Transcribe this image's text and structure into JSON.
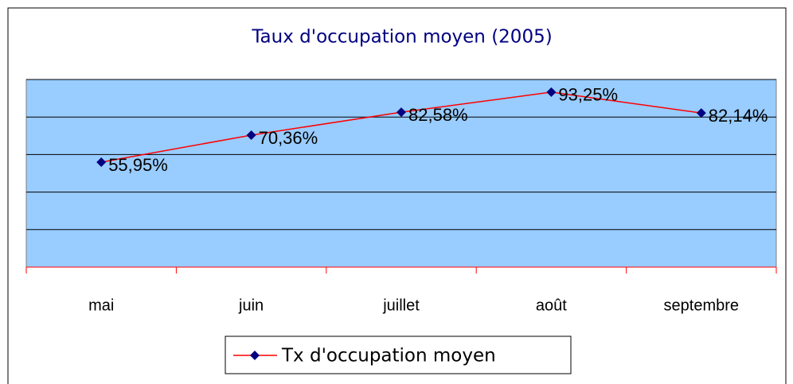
{
  "chart_data": {
    "type": "line",
    "title": "Taux d'occupation moyen (2005)",
    "categories": [
      "mai",
      "juin",
      "juillet",
      "août",
      "septembre"
    ],
    "series": [
      {
        "name": "Tx d'occupation moyen",
        "color": "#ff0000",
        "marker_color": "#000080",
        "values": [
          55.95,
          70.36,
          82.58,
          93.25,
          82.14
        ],
        "value_labels": [
          "55,95%",
          "70,36%",
          "82,58%",
          "93,25%",
          "82,14%"
        ]
      }
    ],
    "ylim": [
      0,
      100
    ],
    "yticks": [
      0,
      20,
      40,
      60,
      80,
      100
    ],
    "grid": true,
    "legend": "bottom"
  }
}
